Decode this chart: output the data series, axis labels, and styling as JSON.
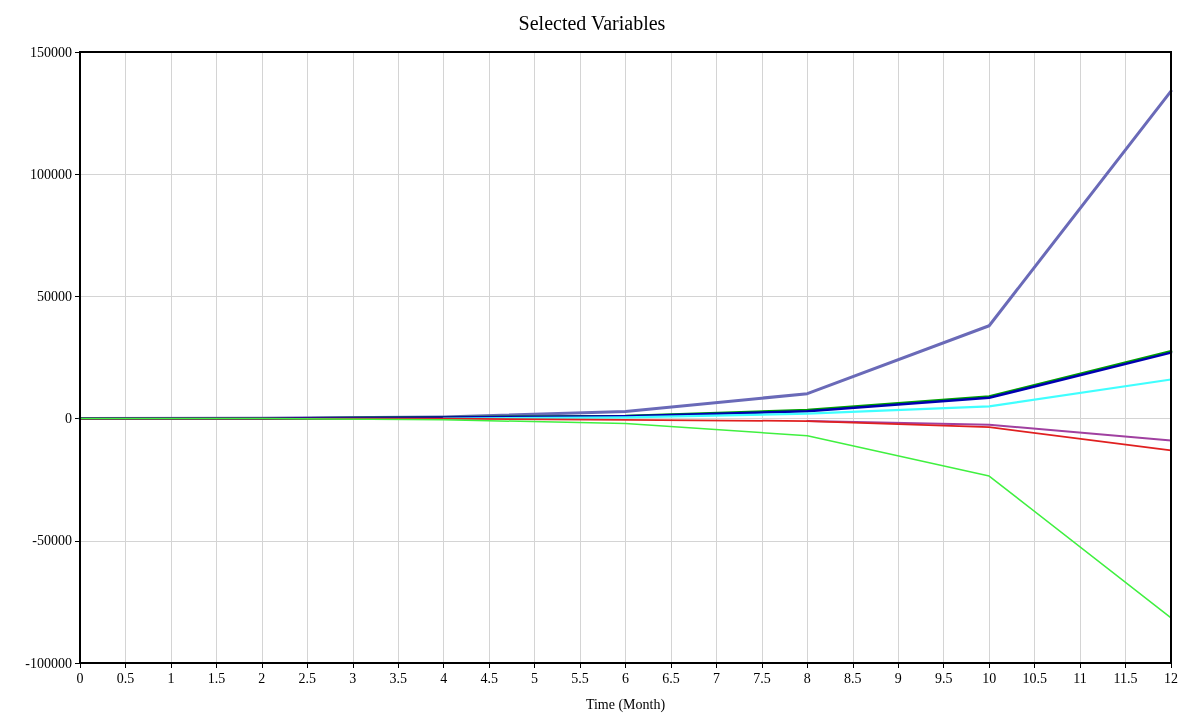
{
  "chart_data": {
    "type": "line",
    "title": "Selected Variables",
    "xlabel": "Time (Month)",
    "x": [
      0,
      2,
      4,
      6,
      8,
      10,
      12
    ],
    "series": [
      {
        "color": "#6a6ab8",
        "values": [
          0,
          100,
          700,
          2900,
          10200,
          38000,
          134000
        ]
      },
      {
        "color": "#00a000",
        "values": [
          0,
          0,
          500,
          1000,
          3500,
          9000,
          27500
        ]
      },
      {
        "color": "#0000b0",
        "values": [
          0,
          0,
          500,
          1000,
          3000,
          8500,
          27000
        ]
      },
      {
        "color": "#40ffff",
        "values": [
          null,
          null,
          0,
          500,
          2000,
          5000,
          16000
        ]
      },
      {
        "color": "#a040a0",
        "values": [
          null,
          null,
          null,
          null,
          -1000,
          -2500,
          -9000
        ]
      },
      {
        "color": "#e02020",
        "values": [
          0,
          0,
          0,
          -500,
          -1000,
          -3500,
          -13000
        ]
      },
      {
        "color": "#40f040",
        "values": [
          0,
          0,
          -500,
          -2000,
          -7000,
          -23500,
          -81500
        ]
      }
    ],
    "xlim": [
      0,
      12
    ],
    "xticks": [
      0,
      0.5,
      1,
      1.5,
      2,
      2.5,
      3,
      3.5,
      4,
      4.5,
      5,
      5.5,
      6,
      6.5,
      7,
      7.5,
      8,
      8.5,
      9,
      9.5,
      10,
      10.5,
      11,
      11.5,
      12
    ],
    "ylim": [
      -100000,
      150000
    ],
    "yticks": [
      -100000,
      -50000,
      0,
      50000,
      100000,
      150000
    ],
    "grid": true,
    "marker": "none",
    "line_style": "solid"
  }
}
